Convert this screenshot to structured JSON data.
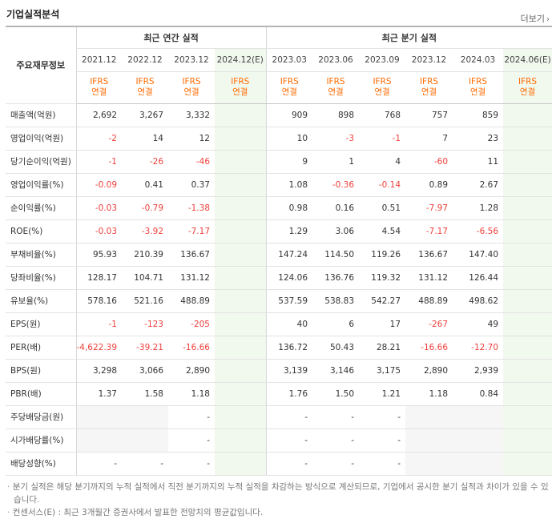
{
  "header": {
    "title": "기업실적분석",
    "more_label": "더보기",
    "more_arrow": "›"
  },
  "table": {
    "corner_label": "주요재무정보",
    "group_annual": "최근 연간 실적",
    "group_quarter": "최근 분기 실적",
    "annual_dates": [
      "2021.12",
      "2022.12",
      "2023.12",
      "2024.12(E)"
    ],
    "quarter_dates": [
      "2023.03",
      "2023.06",
      "2023.09",
      "2023.12",
      "2024.03",
      "2024.06(E)"
    ],
    "ifrs_top": "IFRS",
    "ifrs_bottom": "연결",
    "rows": [
      {
        "label": "매출액(억원)",
        "annual": [
          "2,692",
          "3,267",
          "3,332",
          ""
        ],
        "quarter": [
          "909",
          "898",
          "768",
          "757",
          "859",
          ""
        ]
      },
      {
        "label": "영업이익(억원)",
        "annual": [
          "-2",
          "14",
          "12",
          ""
        ],
        "quarter": [
          "10",
          "-3",
          "-1",
          "7",
          "23",
          ""
        ]
      },
      {
        "label": "당기순이익(억원)",
        "annual": [
          "-1",
          "-26",
          "-46",
          ""
        ],
        "quarter": [
          "9",
          "1",
          "4",
          "-60",
          "11",
          ""
        ]
      },
      {
        "label": "영업이익률(%)",
        "annual": [
          "-0.09",
          "0.41",
          "0.37",
          ""
        ],
        "quarter": [
          "1.08",
          "-0.36",
          "-0.14",
          "0.89",
          "2.67",
          ""
        ]
      },
      {
        "label": "순이익률(%)",
        "annual": [
          "-0.03",
          "-0.79",
          "-1.38",
          ""
        ],
        "quarter": [
          "0.98",
          "0.16",
          "0.51",
          "-7.97",
          "1.28",
          ""
        ]
      },
      {
        "label": "ROE(%)",
        "annual": [
          "-0.03",
          "-3.92",
          "-7.17",
          ""
        ],
        "quarter": [
          "1.29",
          "3.06",
          "4.54",
          "-7.17",
          "-6.56",
          ""
        ]
      },
      {
        "label": "부채비율(%)",
        "annual": [
          "95.93",
          "210.39",
          "136.67",
          ""
        ],
        "quarter": [
          "147.24",
          "114.50",
          "119.26",
          "136.67",
          "147.40",
          ""
        ]
      },
      {
        "label": "당좌비율(%)",
        "annual": [
          "128.17",
          "104.71",
          "131.12",
          ""
        ],
        "quarter": [
          "124.06",
          "136.76",
          "119.32",
          "131.12",
          "126.44",
          ""
        ]
      },
      {
        "label": "유보율(%)",
        "annual": [
          "578.16",
          "521.16",
          "488.89",
          ""
        ],
        "quarter": [
          "537.59",
          "538.83",
          "542.27",
          "488.89",
          "498.62",
          ""
        ]
      },
      {
        "label": "EPS(원)",
        "annual": [
          "-1",
          "-123",
          "-205",
          ""
        ],
        "quarter": [
          "40",
          "6",
          "17",
          "-267",
          "49",
          ""
        ]
      },
      {
        "label": "PER(배)",
        "annual": [
          "-4,622.39",
          "-39.21",
          "-16.66",
          ""
        ],
        "quarter": [
          "136.72",
          "50.43",
          "28.21",
          "-16.66",
          "-12.70",
          ""
        ]
      },
      {
        "label": "BPS(원)",
        "annual": [
          "3,298",
          "3,066",
          "2,890",
          ""
        ],
        "quarter": [
          "3,139",
          "3,146",
          "3,175",
          "2,890",
          "2,939",
          ""
        ]
      },
      {
        "label": "PBR(배)",
        "annual": [
          "1.37",
          "1.58",
          "1.18",
          ""
        ],
        "quarter": [
          "1.76",
          "1.50",
          "1.21",
          "1.18",
          "0.84",
          ""
        ]
      },
      {
        "label": "주당배당금(원)",
        "annual": [
          "",
          "",
          "-",
          ""
        ],
        "quarter": [
          "-",
          "-",
          "-",
          "",
          "",
          ""
        ]
      },
      {
        "label": "시가배당률(%)",
        "annual": [
          "",
          "",
          "-",
          ""
        ],
        "quarter": [
          "-",
          "-",
          "-",
          "",
          "",
          ""
        ]
      },
      {
        "label": "배당성향(%)",
        "annual": [
          "-",
          "-",
          "-",
          ""
        ],
        "quarter": [
          "-",
          "-",
          "-",
          "",
          "",
          ""
        ]
      }
    ]
  },
  "notes": [
    "분기 실적은 해당 분기까지의 누적 실적에서 직전 분기까지의 누적 실적을 차감하는 방식으로 계산되므로, 기업에서 공시한 분기 실적과 차이가 있을 수 있습니다.",
    "컨센서스(E) : 최근 3개월간 증권사에서 발표한 전망치의 평균값입니다."
  ],
  "colors": {
    "negative": "#ef3f3a",
    "ifrs": "#ff6a00",
    "estimate_bg": "#f1f8ee"
  }
}
